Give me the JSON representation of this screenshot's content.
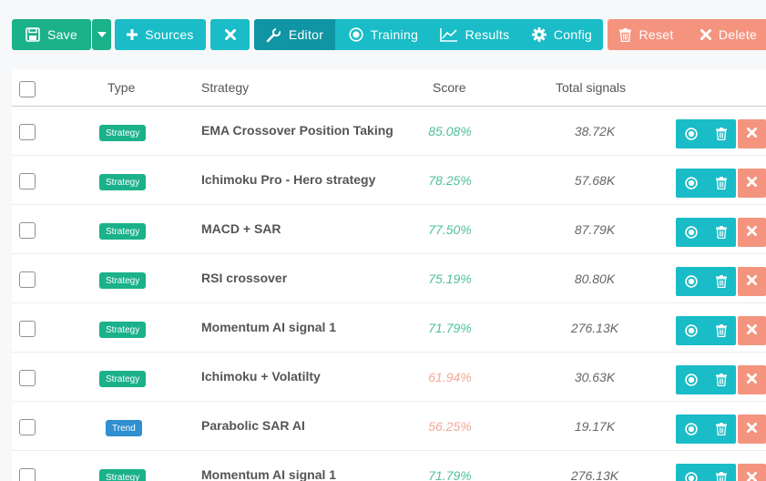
{
  "toolbar": {
    "save_label": "Save",
    "sources_label": "Sources",
    "editor_label": "Editor",
    "training_label": "Training",
    "results_label": "Results",
    "config_label": "Config",
    "reset_label": "Reset",
    "delete_label": "Delete"
  },
  "table": {
    "headers": {
      "type": "Type",
      "strategy": "Strategy",
      "score": "Score",
      "signals": "Total signals"
    },
    "rows": [
      {
        "type": "Strategy",
        "name": "EMA Crossover Position Taking",
        "score": "85.08%",
        "signals": "38.72K",
        "score_status": "good"
      },
      {
        "type": "Strategy",
        "name": "Ichimoku Pro - Hero strategy",
        "score": "78.25%",
        "signals": "57.68K",
        "score_status": "good"
      },
      {
        "type": "Strategy",
        "name": "MACD + SAR",
        "score": "77.50%",
        "signals": "87.79K",
        "score_status": "good"
      },
      {
        "type": "Strategy",
        "name": "RSI crossover",
        "score": "75.19%",
        "signals": "80.80K",
        "score_status": "good"
      },
      {
        "type": "Strategy",
        "name": "Momentum AI signal 1",
        "score": "71.79%",
        "signals": "276.13K",
        "score_status": "good"
      },
      {
        "type": "Strategy",
        "name": "Ichimoku + Volatilty",
        "score": "61.94%",
        "signals": "30.63K",
        "score_status": "bad"
      },
      {
        "type": "Trend",
        "name": "Parabolic SAR AI",
        "score": "56.25%",
        "signals": "19.17K",
        "score_status": "bad"
      },
      {
        "type": "Strategy",
        "name": "Momentum AI signal 1",
        "score": "71.79%",
        "signals": "276.13K",
        "score_status": "good"
      }
    ]
  },
  "colors": {
    "teal": "#19bcc7",
    "teal_active": "#0f95a3",
    "strategy_badge": "#1bb18a",
    "trend_badge": "#2f8fd0",
    "danger": "#f4947f",
    "score_good": "#4fc09a",
    "score_bad": "#f0a898"
  },
  "icons": [
    "save-icon",
    "caret-down-icon",
    "plus-icon",
    "close-icon",
    "wrench-icon",
    "record-icon",
    "chart-line-icon",
    "gear-icon",
    "trash-icon"
  ]
}
